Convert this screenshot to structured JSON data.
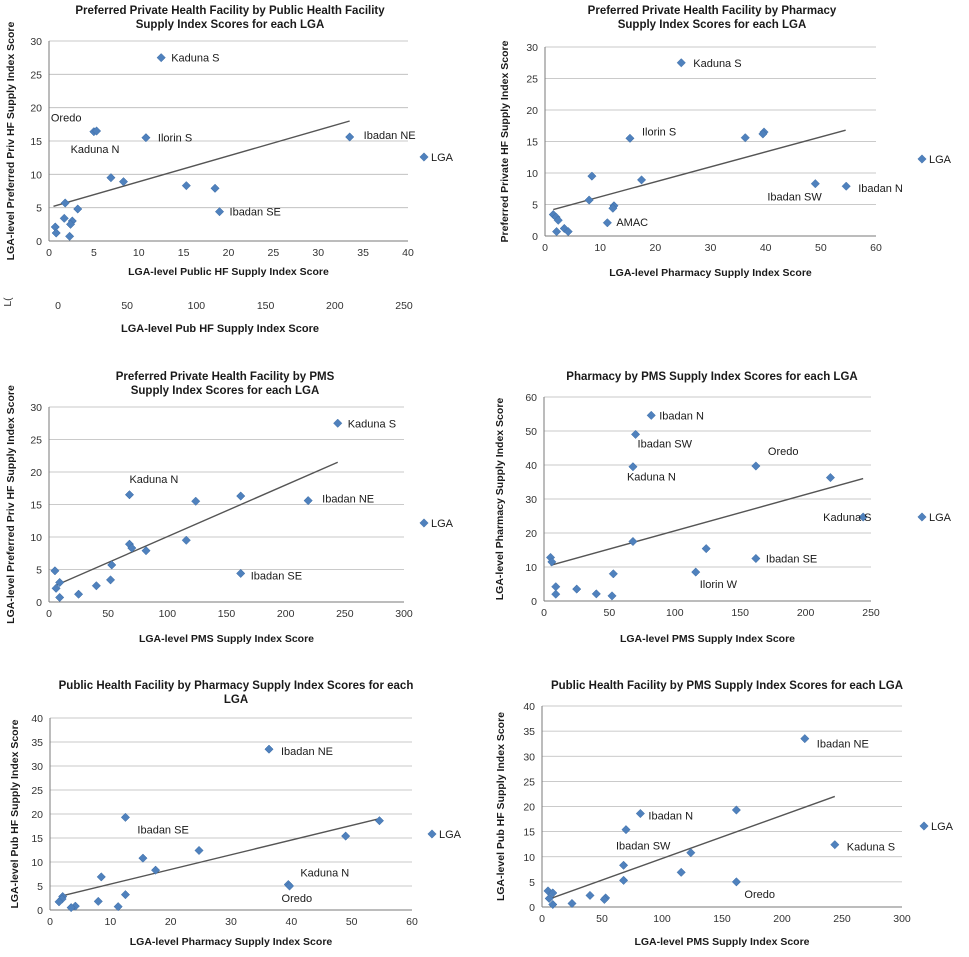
{
  "colors": {
    "marker": "#4f81bd",
    "trendline": "#555555",
    "grid": "#b9b9b9"
  },
  "chart_data": [
    {
      "type": "scatter",
      "title": "Preferred Private Health Facility by Public Health Facility Supply Index Scores for each LGA",
      "title_lines": [
        "Preferred Private Health Facility by Public Health Facility",
        "Supply Index Scores for each LGA"
      ],
      "xlabel": "LGA-level Public HF Supply Index Score",
      "ylabel": "LGA-level Preferred Priv HF Supply Index Score",
      "xlim": [
        0,
        40
      ],
      "ylim": [
        0,
        30
      ],
      "xticks": [
        0,
        5,
        10,
        15,
        20,
        25,
        30,
        35,
        40
      ],
      "yticks": [
        0,
        5,
        10,
        15,
        20,
        25,
        30
      ],
      "grid": true,
      "legend": "LGA",
      "legend_position": "right",
      "trendline": [
        [
          0.5,
          5.2
        ],
        [
          33.5,
          18.0
        ]
      ],
      "points": [
        {
          "x": 12.5,
          "y": 27.5,
          "label": "Kaduna S"
        },
        {
          "x": 5.0,
          "y": 16.4,
          "label": "Oredo"
        },
        {
          "x": 5.3,
          "y": 16.5,
          "label": "Kaduna N"
        },
        {
          "x": 10.8,
          "y": 15.5,
          "label": "Ilorin S"
        },
        {
          "x": 33.5,
          "y": 15.6,
          "label": "Ibadan NE"
        },
        {
          "x": 19.0,
          "y": 4.4,
          "label": "Ibadan SE"
        },
        {
          "x": 6.9,
          "y": 9.5,
          "label": ""
        },
        {
          "x": 8.3,
          "y": 8.9,
          "label": ""
        },
        {
          "x": 15.3,
          "y": 8.3,
          "label": ""
        },
        {
          "x": 18.5,
          "y": 7.9,
          "label": ""
        },
        {
          "x": 1.8,
          "y": 5.7,
          "label": ""
        },
        {
          "x": 3.2,
          "y": 4.8,
          "label": ""
        },
        {
          "x": 1.7,
          "y": 3.4,
          "label": ""
        },
        {
          "x": 2.6,
          "y": 3.0,
          "label": ""
        },
        {
          "x": 2.4,
          "y": 2.5,
          "label": ""
        },
        {
          "x": 0.7,
          "y": 2.1,
          "label": ""
        },
        {
          "x": 0.8,
          "y": 1.2,
          "label": ""
        },
        {
          "x": 2.3,
          "y": 0.7,
          "label": ""
        }
      ]
    },
    {
      "type": "scatter",
      "title": "Preferred Private Health Facility by Pharmacy Supply Index Scores for each LGA",
      "title_lines": [
        "Preferred Private Health Facility by Pharmacy",
        "Supply Index Scores for each LGA"
      ],
      "xlabel": "LGA-level Pharmacy Supply Index Score",
      "ylabel": "Preferred Private HF Supply Index Score",
      "xlim": [
        0,
        60
      ],
      "ylim": [
        0,
        30
      ],
      "xticks": [
        0,
        10,
        20,
        30,
        40,
        50,
        60
      ],
      "yticks": [
        0,
        5,
        10,
        15,
        20,
        25,
        30
      ],
      "grid": true,
      "legend": "LGA",
      "legend_position": "right",
      "trendline": [
        [
          1.5,
          4.2
        ],
        [
          54.5,
          16.8
        ]
      ],
      "points": [
        {
          "x": 24.7,
          "y": 27.5,
          "label": "Kaduna S"
        },
        {
          "x": 15.4,
          "y": 15.5,
          "label": "Ilorin S"
        },
        {
          "x": 36.3,
          "y": 15.6,
          "label": ""
        },
        {
          "x": 39.7,
          "y": 16.5,
          "label": ""
        },
        {
          "x": 39.5,
          "y": 16.2,
          "label": ""
        },
        {
          "x": 49.0,
          "y": 8.3,
          "label": "Ibadan SW"
        },
        {
          "x": 54.6,
          "y": 7.9,
          "label": "Ibadan N"
        },
        {
          "x": 11.3,
          "y": 2.1,
          "label": "AMAC"
        },
        {
          "x": 8.5,
          "y": 9.5,
          "label": ""
        },
        {
          "x": 17.5,
          "y": 8.9,
          "label": ""
        },
        {
          "x": 8.0,
          "y": 5.7,
          "label": ""
        },
        {
          "x": 12.5,
          "y": 4.8,
          "label": ""
        },
        {
          "x": 12.3,
          "y": 4.4,
          "label": ""
        },
        {
          "x": 1.5,
          "y": 3.4,
          "label": ""
        },
        {
          "x": 2.0,
          "y": 3.0,
          "label": ""
        },
        {
          "x": 2.4,
          "y": 2.5,
          "label": ""
        },
        {
          "x": 3.5,
          "y": 1.2,
          "label": ""
        },
        {
          "x": 4.2,
          "y": 0.7,
          "label": ""
        },
        {
          "x": 2.1,
          "y": 0.7,
          "label": ""
        }
      ]
    },
    {
      "type": "scatter",
      "title": "Preferred Private Health Facility by PMS Supply Index Scores for each LGA",
      "title_lines": [
        "Preferred Private Health Facility by PMS",
        "Supply Index Scores for each LGA"
      ],
      "xlabel": "LGA-level PMS Supply Index Score",
      "ylabel": "LGA-level Preferred Priv HF Supply Index Score",
      "xlim": [
        0,
        300
      ],
      "ylim": [
        0,
        30
      ],
      "xticks": [
        0,
        50,
        100,
        150,
        200,
        250,
        300
      ],
      "yticks": [
        0,
        5,
        10,
        15,
        20,
        25,
        30
      ],
      "grid": true,
      "legend": "LGA",
      "legend_position": "right",
      "trendline": [
        [
          5,
          2.5
        ],
        [
          244,
          21.5
        ]
      ],
      "points": [
        {
          "x": 244,
          "y": 27.5,
          "label": "Kaduna S"
        },
        {
          "x": 68,
          "y": 16.5,
          "label": "Kaduna N"
        },
        {
          "x": 219,
          "y": 15.6,
          "label": "Ibadan NE"
        },
        {
          "x": 162,
          "y": 16.3,
          "label": ""
        },
        {
          "x": 124,
          "y": 15.5,
          "label": ""
        },
        {
          "x": 162,
          "y": 4.4,
          "label": "Ibadan SE"
        },
        {
          "x": 68,
          "y": 8.9,
          "label": ""
        },
        {
          "x": 70,
          "y": 8.3,
          "label": ""
        },
        {
          "x": 82,
          "y": 7.9,
          "label": ""
        },
        {
          "x": 116,
          "y": 9.5,
          "label": ""
        },
        {
          "x": 53,
          "y": 5.7,
          "label": ""
        },
        {
          "x": 5,
          "y": 4.8,
          "label": ""
        },
        {
          "x": 52,
          "y": 3.4,
          "label": ""
        },
        {
          "x": 9,
          "y": 3.0,
          "label": ""
        },
        {
          "x": 40,
          "y": 2.5,
          "label": ""
        },
        {
          "x": 6,
          "y": 2.1,
          "label": ""
        },
        {
          "x": 25,
          "y": 1.2,
          "label": ""
        },
        {
          "x": 9,
          "y": 0.7,
          "label": ""
        }
      ]
    },
    {
      "type": "scatter",
      "title": "Pharmacy by PMS Supply Index Scores for each LGA",
      "title_lines": [
        "Pharmacy by PMS Supply Index Scores for each LGA"
      ],
      "xlabel": "LGA-level PMS Supply Index Score",
      "ylabel": "LGA-level Pharmacy Supply Index Score",
      "xlim": [
        0,
        250
      ],
      "ylim": [
        0,
        60
      ],
      "xticks": [
        0,
        50,
        100,
        150,
        200,
        250
      ],
      "yticks": [
        0,
        10,
        20,
        30,
        40,
        50,
        60
      ],
      "grid": true,
      "legend": "LGA",
      "legend_position": "right",
      "trendline": [
        [
          5,
          10.5
        ],
        [
          244,
          36
        ]
      ],
      "points": [
        {
          "x": 82,
          "y": 54.6,
          "label": "Ibadan N"
        },
        {
          "x": 70,
          "y": 49.0,
          "label": "Ibadan SW"
        },
        {
          "x": 68,
          "y": 39.5,
          "label": "Kaduna N"
        },
        {
          "x": 162,
          "y": 39.7,
          "label": "Oredo"
        },
        {
          "x": 219,
          "y": 36.3,
          "label": ""
        },
        {
          "x": 244,
          "y": 24.7,
          "label": "Kaduna S"
        },
        {
          "x": 162,
          "y": 12.5,
          "label": "Ibadan SE"
        },
        {
          "x": 116,
          "y": 8.5,
          "label": "Ilorin W"
        },
        {
          "x": 124,
          "y": 15.4,
          "label": ""
        },
        {
          "x": 68,
          "y": 17.5,
          "label": ""
        },
        {
          "x": 5,
          "y": 12.8,
          "label": ""
        },
        {
          "x": 6,
          "y": 11.5,
          "label": ""
        },
        {
          "x": 53,
          "y": 8.0,
          "label": ""
        },
        {
          "x": 9,
          "y": 4.2,
          "label": ""
        },
        {
          "x": 25,
          "y": 3.5,
          "label": ""
        },
        {
          "x": 9,
          "y": 2.0,
          "label": ""
        },
        {
          "x": 40,
          "y": 2.1,
          "label": ""
        },
        {
          "x": 52,
          "y": 1.5,
          "label": ""
        }
      ]
    },
    {
      "type": "scatter",
      "title": "Public Health Facility by Pharmacy Supply Index Scores for each LGA",
      "title_lines": [
        "Public Health Facility by Pharmacy Supply Index Scores for each",
        "LGA"
      ],
      "xlabel": "LGA-level Pharmacy Supply Index Score",
      "ylabel": "LGA-level Pub HF Supply Index Score",
      "xlim": [
        0,
        60
      ],
      "ylim": [
        0,
        40
      ],
      "xticks": [
        0,
        10,
        20,
        30,
        40,
        50,
        60
      ],
      "yticks": [
        0,
        5,
        10,
        15,
        20,
        25,
        30,
        35,
        40
      ],
      "grid": true,
      "legend": "LGA",
      "legend_position": "right",
      "trendline": [
        [
          1.5,
          2.8
        ],
        [
          54.5,
          19.0
        ]
      ],
      "points": [
        {
          "x": 36.3,
          "y": 33.5,
          "label": "Ibadan NE"
        },
        {
          "x": 12.5,
          "y": 19.3,
          "label": "Ibadan SE"
        },
        {
          "x": 54.6,
          "y": 18.6,
          "label": ""
        },
        {
          "x": 49.0,
          "y": 15.4,
          "label": ""
        },
        {
          "x": 24.7,
          "y": 12.4,
          "label": ""
        },
        {
          "x": 15.4,
          "y": 10.8,
          "label": ""
        },
        {
          "x": 17.5,
          "y": 8.3,
          "label": ""
        },
        {
          "x": 8.5,
          "y": 6.9,
          "label": ""
        },
        {
          "x": 39.5,
          "y": 5.3,
          "label": "Kaduna N"
        },
        {
          "x": 39.7,
          "y": 5.0,
          "label": "Oredo"
        },
        {
          "x": 12.5,
          "y": 3.2,
          "label": ""
        },
        {
          "x": 2.1,
          "y": 2.8,
          "label": ""
        },
        {
          "x": 2.0,
          "y": 2.3,
          "label": ""
        },
        {
          "x": 1.5,
          "y": 1.7,
          "label": ""
        },
        {
          "x": 8.0,
          "y": 1.8,
          "label": ""
        },
        {
          "x": 4.2,
          "y": 0.8,
          "label": ""
        },
        {
          "x": 3.5,
          "y": 0.5,
          "label": ""
        },
        {
          "x": 11.3,
          "y": 0.7,
          "label": ""
        }
      ]
    },
    {
      "type": "scatter",
      "title": "Public Health Facility by PMS Supply Index Scores for each LGA",
      "title_lines": [
        "Public Health Facility by PMS Supply Index Scores for each LGA"
      ],
      "xlabel": "LGA-level PMS Supply Index Score",
      "ylabel": "LGA-level Pub HF Supply Index Score",
      "xlim": [
        0,
        300
      ],
      "ylim": [
        0,
        40
      ],
      "xticks": [
        0,
        50,
        100,
        150,
        200,
        250,
        300
      ],
      "yticks": [
        0,
        5,
        10,
        15,
        20,
        25,
        30,
        35,
        40
      ],
      "grid": true,
      "legend": "LGA",
      "legend_position": "right",
      "trendline": [
        [
          5,
          1.5
        ],
        [
          244,
          22.0
        ]
      ],
      "points": [
        {
          "x": 219,
          "y": 33.5,
          "label": "Ibadan NE"
        },
        {
          "x": 162,
          "y": 19.3,
          "label": ""
        },
        {
          "x": 82,
          "y": 18.6,
          "label": "Ibadan N"
        },
        {
          "x": 70,
          "y": 15.4,
          "label": "Ibadan SW"
        },
        {
          "x": 124,
          "y": 10.8,
          "label": ""
        },
        {
          "x": 244,
          "y": 12.4,
          "label": "Kaduna S"
        },
        {
          "x": 68,
          "y": 8.3,
          "label": ""
        },
        {
          "x": 116,
          "y": 6.9,
          "label": ""
        },
        {
          "x": 68,
          "y": 5.3,
          "label": ""
        },
        {
          "x": 162,
          "y": 5.0,
          "label": "Oredo"
        },
        {
          "x": 5,
          "y": 3.2,
          "label": ""
        },
        {
          "x": 9,
          "y": 2.8,
          "label": ""
        },
        {
          "x": 40,
          "y": 2.3,
          "label": ""
        },
        {
          "x": 6,
          "y": 1.7,
          "label": ""
        },
        {
          "x": 53,
          "y": 1.8,
          "label": ""
        },
        {
          "x": 52,
          "y": 1.5,
          "label": ""
        },
        {
          "x": 25,
          "y": 0.7,
          "label": ""
        },
        {
          "x": 9,
          "y": 0.5,
          "label": ""
        }
      ]
    }
  ],
  "overlap_axis": {
    "label": "LGA-level Pub HF Supply Index Score",
    "ticks": [
      "0",
      "50",
      "100",
      "150",
      "200",
      "250"
    ],
    "clipped_text": "L("
  }
}
